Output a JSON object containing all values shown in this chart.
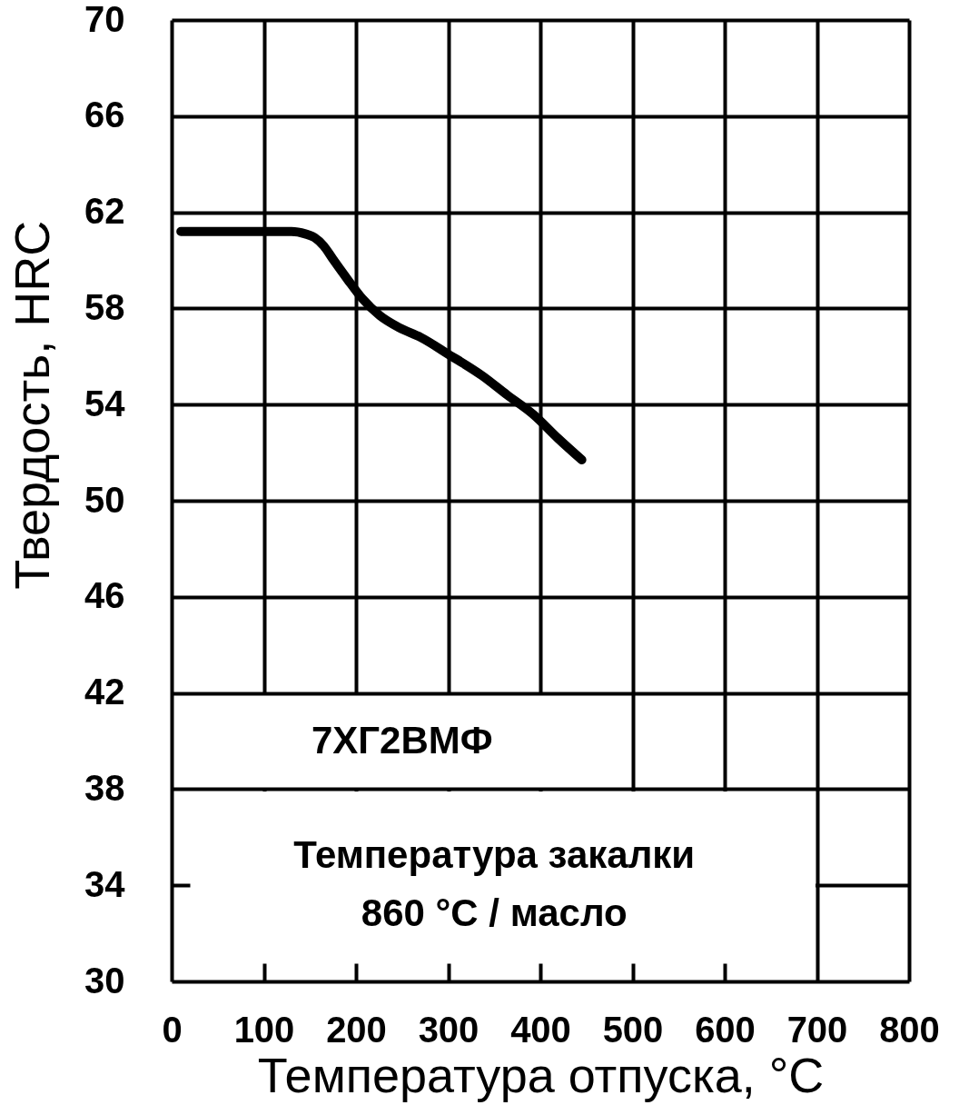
{
  "chart_data": {
    "type": "line",
    "xlabel": "Температура отпуска, °C",
    "ylabel": "Твердость, HRC",
    "x": [
      10,
      50,
      100,
      130,
      145,
      155,
      165,
      175,
      191,
      207,
      226,
      247,
      270,
      300,
      337,
      364,
      392,
      419,
      445
    ],
    "series": [
      {
        "color": "#000000",
        "values": [
          61.2,
          61.2,
          61.2,
          61.2,
          61.1,
          60.95,
          60.6,
          60.05,
          59.2,
          58.4,
          57.7,
          57.2,
          56.8,
          56.1,
          55.2,
          54.4,
          53.6,
          52.6,
          51.7
        ]
      }
    ],
    "xlim": [
      0,
      800
    ],
    "ylim": [
      30,
      70
    ],
    "xticks": [
      0,
      100,
      200,
      300,
      400,
      500,
      600,
      700,
      800
    ],
    "yticks": [
      30,
      34,
      38,
      42,
      46,
      50,
      54,
      58,
      62,
      66,
      70
    ],
    "grid": true,
    "line_style": "solid",
    "annotations": [
      "7ХГ2ВМФ",
      "Температура закалки",
      "860 °C / масло"
    ]
  }
}
